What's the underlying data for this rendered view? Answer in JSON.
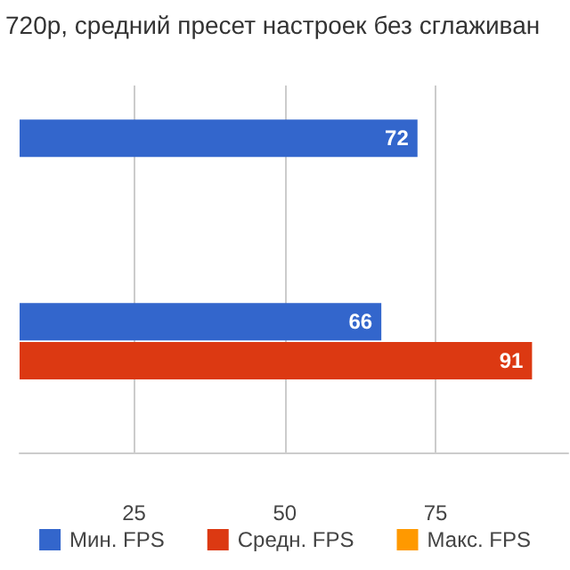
{
  "chart_data": {
    "type": "bar",
    "orientation": "horizontal",
    "title": "720p, средний пресет настроек без сглаживан",
    "categories": [
      null,
      null
    ],
    "series": [
      {
        "name": "Мин. FPS",
        "color": "#3366cc",
        "values": [
          72,
          66
        ],
        "value_labels": [
          "72",
          "66"
        ]
      },
      {
        "name": "Средн. FPS",
        "color": "#dc3912",
        "values": [
          null,
          91
        ],
        "value_labels": [
          null,
          "91"
        ]
      },
      {
        "name": "Макс. FPS",
        "color": "#ff9900",
        "values": [
          null,
          null
        ],
        "value_labels": [
          null,
          null
        ]
      }
    ],
    "xlim": [
      6,
      97
    ],
    "xticks": [
      25,
      50,
      75
    ],
    "grid": "x",
    "legend": "bottom"
  }
}
